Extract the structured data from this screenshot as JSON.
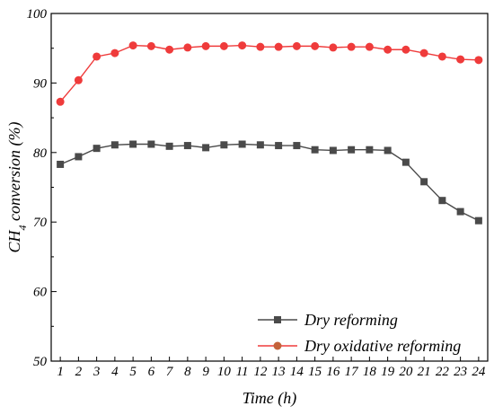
{
  "chart_data": {
    "type": "line",
    "xlabel": "Time (h)",
    "ylabel_prefix": "CH",
    "ylabel_sub": "4",
    "ylabel_suffix": " conversion (%)",
    "xlim": [
      0.5,
      24.5
    ],
    "ylim": [
      50,
      100
    ],
    "x": [
      1,
      2,
      3,
      4,
      5,
      6,
      7,
      8,
      9,
      10,
      11,
      12,
      13,
      14,
      15,
      16,
      17,
      18,
      19,
      20,
      21,
      22,
      23,
      24
    ],
    "x_ticks": [
      "1",
      "2",
      "3",
      "4",
      "5",
      "6",
      "7",
      "8",
      "9",
      "10",
      "11",
      "12",
      "13",
      "14",
      "15",
      "16",
      "17",
      "18",
      "19",
      "20",
      "21",
      "22",
      "23",
      "24"
    ],
    "y_ticks": [
      50,
      60,
      70,
      80,
      90,
      100
    ],
    "grid": false,
    "legend_position": "bottom-right",
    "series": [
      {
        "name": "Dry reforming",
        "marker": "square",
        "color": "#4a4a4a",
        "values": [
          78.3,
          79.4,
          80.6,
          81.1,
          81.2,
          81.2,
          80.9,
          81.0,
          80.7,
          81.1,
          81.2,
          81.1,
          81.0,
          81.0,
          80.4,
          80.3,
          80.4,
          80.4,
          80.3,
          78.6,
          75.8,
          73.1,
          71.5,
          70.2
        ]
      },
      {
        "name": "Dry oxidative reforming",
        "marker": "circle",
        "color": "#ef3b3b",
        "values": [
          87.3,
          90.4,
          93.8,
          94.3,
          95.4,
          95.3,
          94.8,
          95.1,
          95.3,
          95.3,
          95.4,
          95.2,
          95.2,
          95.3,
          95.3,
          95.1,
          95.2,
          95.2,
          94.8,
          94.8,
          94.3,
          93.8,
          93.4,
          93.3
        ]
      }
    ]
  }
}
